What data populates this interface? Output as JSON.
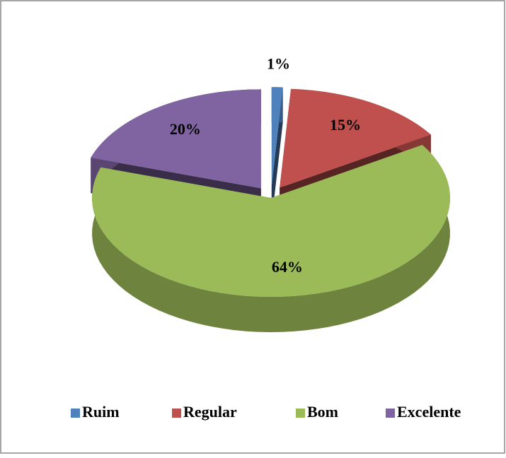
{
  "chart_data": {
    "type": "pie",
    "categories": [
      "Ruim",
      "Regular",
      "Bom",
      "Excelente"
    ],
    "values": [
      1,
      15,
      64,
      20
    ],
    "value_labels": [
      "1%",
      "15%",
      "64%",
      "20%"
    ],
    "colors": [
      "#4f81bd",
      "#c0504d",
      "#9bbb59",
      "#8064a2"
    ],
    "legend": "bottom"
  }
}
